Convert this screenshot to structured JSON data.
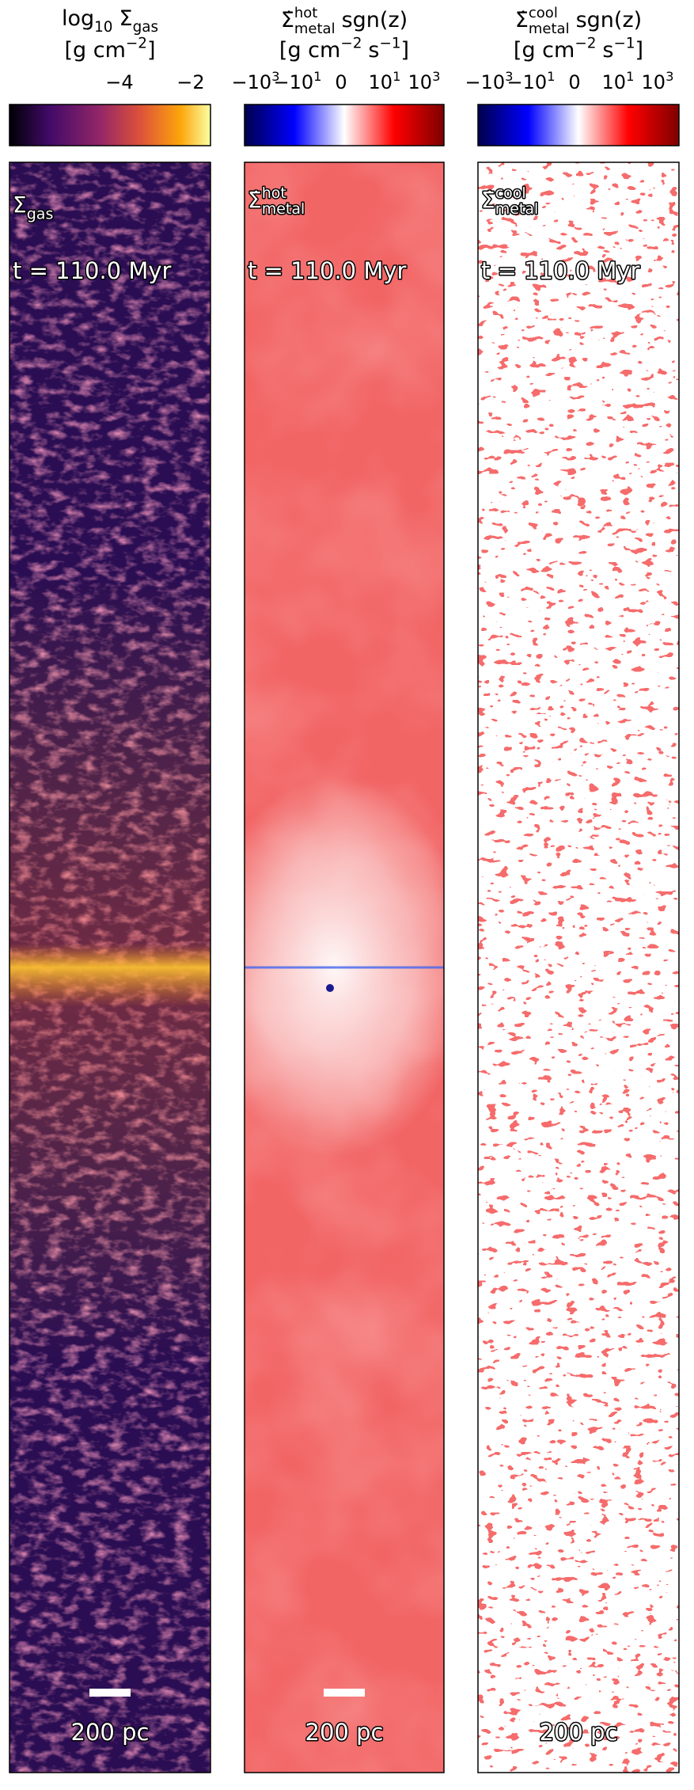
{
  "panels": [
    {
      "title": {
        "log": "log",
        "base": "10",
        "symbol": "Σ",
        "subscript": "gas"
      },
      "units": {
        "open": "[g cm",
        "exponent": "−2",
        "close": "]"
      },
      "ticks": [
        "−4",
        "−2"
      ],
      "label": {
        "symbol": "Σ",
        "subscript": "gas"
      },
      "time": "t = 110.0 Myr",
      "scale": "200 pc"
    },
    {
      "title": {
        "symbol": "Σ̇",
        "superscript": "hot",
        "subscript": "metal",
        "rest": "sgn(z)"
      },
      "units": {
        "open": "[g cm",
        "exponent": "−2",
        "middle": "s",
        "exponent2": "−1",
        "close": "]"
      },
      "ticks": [
        {
          "base": "−10",
          "exponent": "3"
        },
        {
          "base": "−10",
          "exponent": "1"
        },
        {
          "base": "0"
        },
        {
          "base": "10",
          "exponent": "1"
        },
        {
          "base": "10",
          "exponent": "3"
        }
      ],
      "label": {
        "symbol": "Σ̇",
        "superscript": "hot",
        "subscript": "metal"
      },
      "time": "t = 110.0 Myr",
      "scale": "200 pc"
    },
    {
      "title": {
        "symbol": "Σ̇",
        "superscript": "cool",
        "subscript": "metal",
        "rest": "sgn(z)"
      },
      "units": {
        "open": "[g cm",
        "exponent": "−2",
        "middle": "s",
        "exponent2": "−1",
        "close": "]"
      },
      "ticks": [
        {
          "base": "−10",
          "exponent": "3"
        },
        {
          "base": "−10",
          "exponent": "1"
        },
        {
          "base": "0"
        },
        {
          "base": "10",
          "exponent": "1"
        },
        {
          "base": "10",
          "exponent": "3"
        }
      ],
      "label": {
        "symbol": "Σ̇",
        "superscript": "cool",
        "subscript": "metal"
      },
      "time": "t = 110.0 Myr",
      "scale": "200 pc"
    }
  ]
}
